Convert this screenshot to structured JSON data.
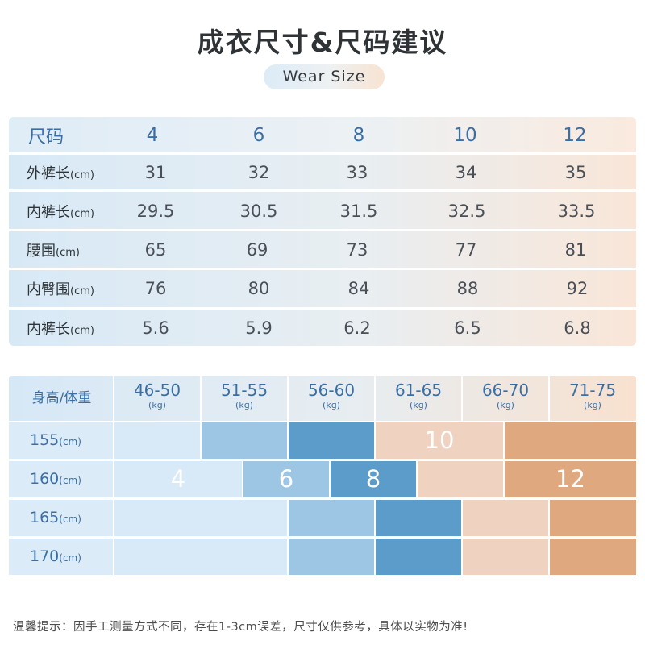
{
  "title": "成衣尺寸&尺码建议",
  "subtitle": "Wear Size",
  "size_table": {
    "header": {
      "label": "尺码",
      "sizes": [
        "4",
        "6",
        "8",
        "10",
        "12"
      ]
    },
    "rows": [
      {
        "label": "外裤长",
        "unit": "(cm)",
        "values": [
          "31",
          "32",
          "33",
          "34",
          "35"
        ]
      },
      {
        "label": "内裤长",
        "unit": "(cm)",
        "values": [
          "29.5",
          "30.5",
          "31.5",
          "32.5",
          "33.5"
        ]
      },
      {
        "label": "腰围",
        "unit": "(cm)",
        "values": [
          "65",
          "69",
          "73",
          "77",
          "81"
        ]
      },
      {
        "label": "内臀围",
        "unit": "(cm)",
        "values": [
          "76",
          "80",
          "84",
          "88",
          "92"
        ]
      },
      {
        "label": "内裤长",
        "unit": "(cm)",
        "values": [
          "5.6",
          "5.9",
          "6.2",
          "6.5",
          "6.8"
        ]
      }
    ]
  },
  "weight_chart": {
    "corner_label": "身高/体重",
    "weight_ranges": [
      "46-50",
      "51-55",
      "56-60",
      "61-65",
      "66-70",
      "71-75"
    ],
    "weight_unit": "(kg)",
    "heights": [
      {
        "value": "155",
        "unit": "(cm)"
      },
      {
        "value": "160",
        "unit": "(cm)"
      },
      {
        "value": "165",
        "unit": "(cm)"
      },
      {
        "value": "170",
        "unit": "(cm)"
      }
    ],
    "size_labels": {
      "s4": "4",
      "s6": "6",
      "s8": "8",
      "s10": "10",
      "s12": "12"
    },
    "colors": {
      "size_4": "#d8eaf8",
      "size_6": "#9dc5e4",
      "size_8": "#5b9ccb",
      "size_10": "#efd2c0",
      "size_12": "#e0a87f"
    }
  },
  "footer_tip": "温馨提示：因手工测量方式不同，存在1-3cm误差，尺寸仅供参考，具体以实物为准!"
}
